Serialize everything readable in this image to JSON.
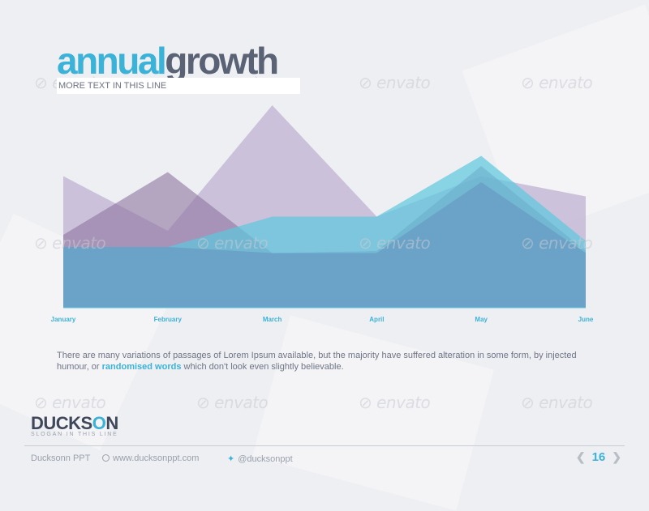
{
  "slide": {
    "title_part1": "annual",
    "title_part2": "growth",
    "subtitle": "MORE TEXT IN THIS LINE",
    "description_before": "There are many variations of passages of Lorem Ipsum available, but the majority have suffered alteration in some form, by injected humour, or ",
    "description_highlight": "randomised words",
    "description_after": " which don't look even slightly believable.",
    "watermark": "envato",
    "page_number": "16"
  },
  "brand": {
    "logo_part1": "DUCKS",
    "logo_part2": "O",
    "logo_part3": "N",
    "slogan": "SLOGAN IN THIS LINE"
  },
  "footer": {
    "company": "Ducksonn PPT",
    "website": "www.ducksonppt.com",
    "twitter": "@ducksonppt",
    "prev_icon": "chevron-left-icon",
    "next_icon": "chevron-right-icon"
  },
  "colors": {
    "accent": "#3bb2d8",
    "dark": "#5a6275",
    "series_purple": "#9b88b5",
    "series_cyan": "#5cc7de",
    "series_blue": "#6a9ec4"
  },
  "chart_data": {
    "type": "area",
    "categories": [
      "January",
      "February",
      "March",
      "April",
      "May",
      "June"
    ],
    "ylim": [
      0,
      100
    ],
    "gridlines": false,
    "series": [
      {
        "values": [
          65,
          38,
          100,
          45,
          65,
          55
        ],
        "color": "#b8a8cc",
        "opacity": 0.65
      },
      {
        "values": [
          36,
          67,
          27,
          28,
          70,
          28
        ],
        "color": "#8e74a0",
        "opacity": 0.6
      },
      {
        "values": [
          30,
          30,
          45,
          45,
          75,
          33
        ],
        "color": "#5cc7de",
        "opacity": 0.7
      },
      {
        "values": [
          30,
          30,
          27,
          27,
          62,
          27
        ],
        "color": "#6a9ec4",
        "opacity": 0.85
      }
    ]
  }
}
